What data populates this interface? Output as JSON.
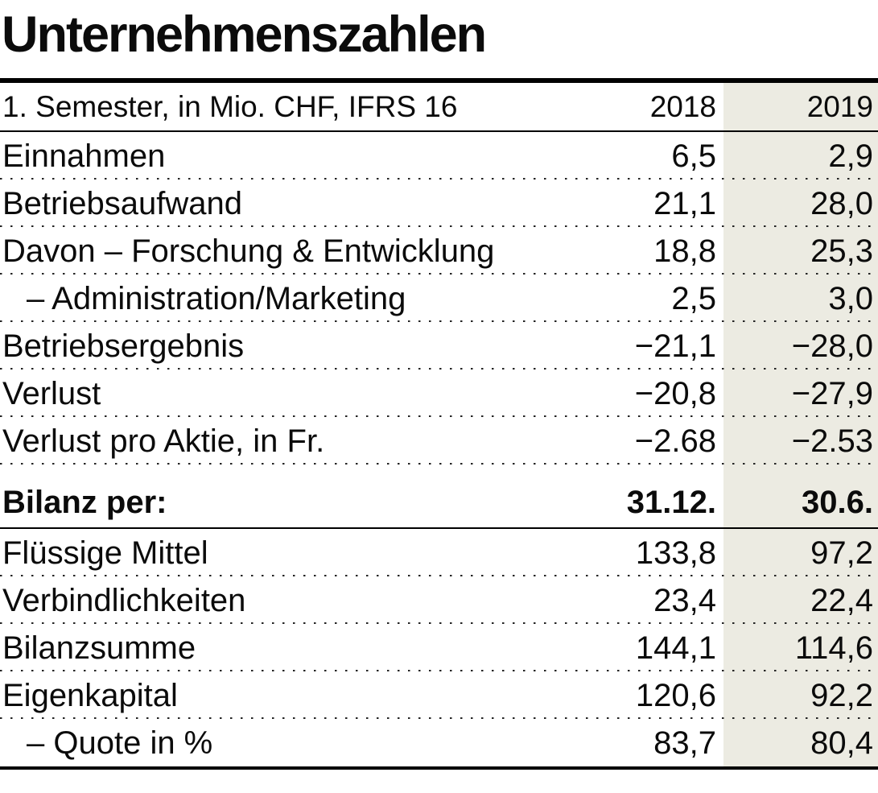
{
  "title": "Unternehmenszahlen",
  "colors": {
    "shade_2019_column": "#ECEBE2",
    "text": "#0B0B0B",
    "rule": "#000000"
  },
  "table": {
    "header": {
      "label": "1. Semester, in Mio. CHF, IFRS 16",
      "col1": "2018",
      "col2": "2019"
    },
    "rows": [
      {
        "label": "Einnahmen",
        "v2018": "6,5",
        "v2019": "2,9"
      },
      {
        "label": "Betriebsaufwand",
        "v2018": "21,1",
        "v2019": "28,0"
      },
      {
        "label": "Davon – Forschung & Entwicklung",
        "v2018": "18,8",
        "v2019": "25,3"
      },
      {
        "label": "– Administration/Marketing",
        "indent": true,
        "v2018": "2,5",
        "v2019": "3,0"
      },
      {
        "label": "Betriebsergebnis",
        "v2018": "−21,1",
        "v2019": "−28,0"
      },
      {
        "label": "Verlust",
        "v2018": "−20,8",
        "v2019": "−27,9"
      },
      {
        "label": "Verlust pro Aktie, in Fr.",
        "v2018": "−2.68",
        "v2019": "−2.53"
      }
    ],
    "section": {
      "label": "Bilanz per:",
      "v2018": "31.12.",
      "v2019": "30.6."
    },
    "rows2": [
      {
        "label": "Flüssige Mittel",
        "v2018": "133,8",
        "v2019": "97,2"
      },
      {
        "label": "Verbindlichkeiten",
        "v2018": "23,4",
        "v2019": "22,4"
      },
      {
        "label": "Bilanzsumme",
        "v2018": "144,1",
        "v2019": "114,6"
      },
      {
        "label": "Eigenkapital",
        "v2018": "120,6",
        "v2019": "92,2"
      },
      {
        "label": "– Quote in %",
        "indent": true,
        "v2018": "83,7",
        "v2019": "80,4"
      }
    ]
  }
}
